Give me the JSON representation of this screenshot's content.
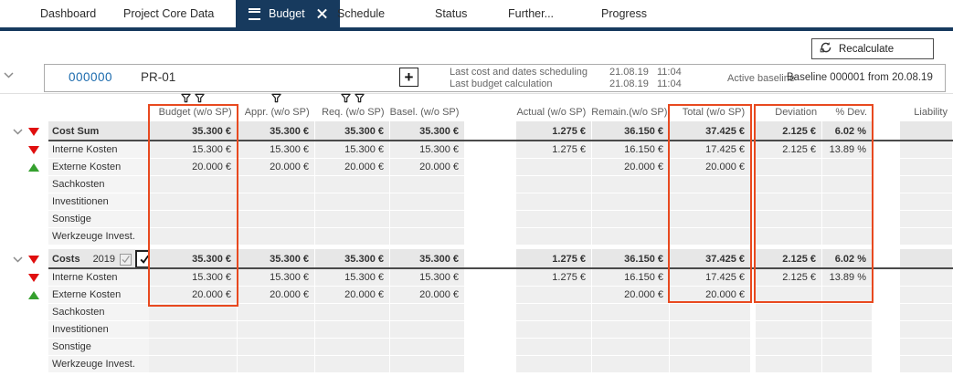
{
  "tabs": [
    {
      "label": "Dashboard",
      "active": false
    },
    {
      "label": "Project Core Data",
      "active": false
    },
    {
      "label": "Budget",
      "active": true
    },
    {
      "label": "Schedule",
      "active": false
    },
    {
      "label": "Status",
      "active": false
    },
    {
      "label": "Further...",
      "active": false
    },
    {
      "label": "Progress",
      "active": false
    }
  ],
  "toolbar": {
    "recalculate_label": "Recalculate"
  },
  "project": {
    "id": "000000",
    "code": "PR-01",
    "add_button": "+",
    "info": [
      {
        "label": "Last cost and dates scheduling",
        "date": "21.08.19",
        "time": "11:04"
      },
      {
        "label": "Last budget calculation",
        "date": "21.08.19",
        "time": "11:04"
      }
    ],
    "active_baseline_label": "Active baseline",
    "baseline_value": "Baseline 000001 from 20.08.19"
  },
  "grid": {
    "columns": [
      {
        "key": "budget",
        "label": "Budget (w/o SP)",
        "filters": 2,
        "highlight": true
      },
      {
        "key": "appr",
        "label": "Appr. (w/o SP)",
        "filters": 1,
        "highlight": false
      },
      {
        "key": "req",
        "label": "Req. (w/o SP)",
        "filters": 2,
        "highlight": false
      },
      {
        "key": "basel",
        "label": "Basel. (w/o SP)",
        "filters": 0,
        "highlight": false
      },
      {
        "key": "actual",
        "label": "Actual (w/o SP)",
        "filters": 0,
        "highlight": false
      },
      {
        "key": "remain",
        "label": "Remain.(w/o SP)",
        "filters": 0,
        "highlight": false
      },
      {
        "key": "total",
        "label": "Total (w/o SP)",
        "filters": 0,
        "highlight": true
      },
      {
        "key": "dev",
        "label": "Deviation",
        "filters": 0,
        "highlight": true
      },
      {
        "key": "pdev",
        "label": "% Dev.",
        "filters": 0,
        "highlight": true
      },
      {
        "key": "liab",
        "label": "Liability",
        "filters": 0,
        "highlight": false
      }
    ],
    "groups": [
      {
        "header": {
          "label": "Cost Sum",
          "indicator": "red-down",
          "values": {
            "budget": "35.300 €",
            "appr": "35.300 €",
            "req": "35.300 €",
            "basel": "35.300 €",
            "actual": "1.275 €",
            "remain": "36.150 €",
            "total": "37.425 €",
            "dev": "2.125 €",
            "pdev": "6.02 %"
          }
        },
        "rows": [
          {
            "label": "Interne Kosten",
            "indicator": "red-down",
            "values": {
              "budget": "15.300 €",
              "appr": "15.300 €",
              "req": "15.300 €",
              "basel": "15.300 €",
              "actual": "1.275 €",
              "remain": "16.150 €",
              "total": "17.425 €",
              "dev": "2.125 €",
              "pdev": "13.89 %"
            }
          },
          {
            "label": "Externe Kosten",
            "indicator": "green-up",
            "values": {
              "budget": "20.000 €",
              "appr": "20.000 €",
              "req": "20.000 €",
              "basel": "20.000 €",
              "remain": "20.000 €",
              "total": "20.000 €"
            }
          },
          {
            "label": "Sachkosten",
            "indicator": null,
            "values": {}
          },
          {
            "label": "Investitionen",
            "indicator": null,
            "values": {}
          },
          {
            "label": "Sonstige",
            "indicator": null,
            "values": {}
          },
          {
            "label": "Werkzeuge Invest.",
            "indicator": null,
            "values": {}
          }
        ]
      },
      {
        "header": {
          "label": "Costs",
          "year": "2019",
          "indicator": "red-down",
          "checkbox_small_checked": true,
          "checkbox_large_checked": true,
          "values": {
            "budget": "35.300 €",
            "appr": "35.300 €",
            "req": "35.300 €",
            "basel": "35.300 €",
            "actual": "1.275 €",
            "remain": "36.150 €",
            "total": "37.425 €",
            "dev": "2.125 €",
            "pdev": "6.02 %"
          }
        },
        "rows": [
          {
            "label": "Interne Kosten",
            "indicator": "red-down",
            "values": {
              "budget": "15.300 €",
              "appr": "15.300 €",
              "req": "15.300 €",
              "basel": "15.300 €",
              "actual": "1.275 €",
              "remain": "16.150 €",
              "total": "17.425 €",
              "dev": "2.125 €",
              "pdev": "13.89 %"
            }
          },
          {
            "label": "Externe Kosten",
            "indicator": "green-up",
            "values": {
              "budget": "20.000 €",
              "appr": "20.000 €",
              "req": "20.000 €",
              "basel": "20.000 €",
              "remain": "20.000 €",
              "total": "20.000 €"
            }
          },
          {
            "label": "Sachkosten",
            "indicator": null,
            "values": {}
          },
          {
            "label": "Investitionen",
            "indicator": null,
            "values": {}
          },
          {
            "label": "Sonstige",
            "indicator": null,
            "values": {}
          },
          {
            "label": "Werkzeuge Invest.",
            "indicator": null,
            "values": {}
          }
        ]
      }
    ]
  },
  "colors": {
    "accent_navy": "#173a5e",
    "highlight_orange": "#e8491f",
    "indicator_red": "#e00e0e",
    "indicator_green": "#35a02e"
  }
}
